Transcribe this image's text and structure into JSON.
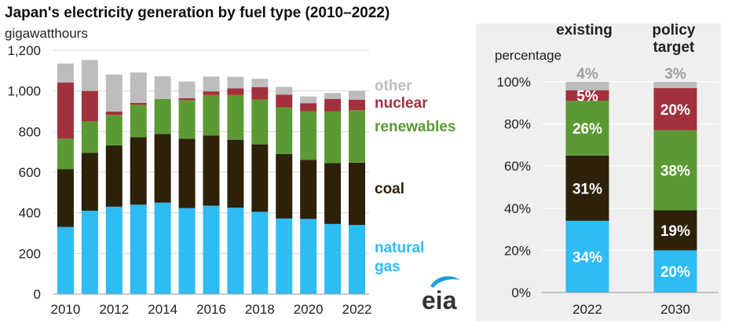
{
  "colors": {
    "natural_gas": "#2ebcf5",
    "coal": "#2e210a",
    "renewables": "#5b9a32",
    "nuclear": "#a3303d",
    "other": "#bdbdbd",
    "panel_bg": "#efefef",
    "eia_blue": "#1aa0dc"
  },
  "eia_logo": {
    "text": "eia"
  },
  "chart_data": [
    {
      "type": "bar",
      "stacked": true,
      "title": "Japan's electricity generation by fuel type (2010–2022)",
      "ylabel": "gigawatthours",
      "xlabel": "",
      "ylim": [
        0,
        1200
      ],
      "yticks": [
        0,
        200,
        400,
        600,
        800,
        1000,
        1200
      ],
      "ytick_labels": [
        "0",
        "200",
        "400",
        "600",
        "800",
        "1,000",
        "1,200"
      ],
      "categories": [
        "2010",
        "2011",
        "2012",
        "2013",
        "2014",
        "2015",
        "2016",
        "2017",
        "2018",
        "2019",
        "2020",
        "2021",
        "2022"
      ],
      "xtick_labels": [
        "2010",
        "",
        "2012",
        "",
        "2014",
        "",
        "2016",
        "",
        "2018",
        "",
        "2020",
        "",
        "2022"
      ],
      "series": [
        {
          "name": "natural gas",
          "key": "natural_gas",
          "legend_lines": [
            "natural",
            "gas"
          ],
          "values": [
            330,
            410,
            430,
            440,
            450,
            423,
            435,
            425,
            405,
            372,
            370,
            345,
            340
          ]
        },
        {
          "name": "coal",
          "key": "coal",
          "legend_lines": [
            "coal"
          ],
          "values": [
            285,
            285,
            302,
            332,
            338,
            342,
            345,
            335,
            332,
            317,
            290,
            300,
            307
          ]
        },
        {
          "name": "renewables",
          "key": "renewables",
          "legend_lines": [
            "renewables"
          ],
          "values": [
            150,
            155,
            150,
            160,
            172,
            190,
            200,
            220,
            220,
            230,
            240,
            255,
            258
          ]
        },
        {
          "name": "nuclear",
          "key": "nuclear",
          "legend_lines": [
            "nuclear"
          ],
          "values": [
            277,
            150,
            17,
            9,
            0,
            9,
            18,
            33,
            62,
            63,
            40,
            60,
            52
          ]
        },
        {
          "name": "other",
          "key": "other",
          "legend_lines": [
            "other"
          ],
          "values": [
            93,
            152,
            182,
            150,
            112,
            82,
            73,
            57,
            41,
            38,
            33,
            30,
            43
          ]
        }
      ]
    },
    {
      "type": "bar",
      "stacked": true,
      "percent": true,
      "ylabel": "percentage",
      "ylim": [
        0,
        100
      ],
      "yticks": [
        0,
        20,
        40,
        60,
        80,
        100
      ],
      "ytick_labels": [
        "0%",
        "20%",
        "40%",
        "60%",
        "80%",
        "100%"
      ],
      "categories": [
        "2022",
        "2030"
      ],
      "column_headers": [
        [
          "existing"
        ],
        [
          "policy",
          "target"
        ]
      ],
      "series": [
        {
          "name": "natural gas",
          "key": "natural_gas",
          "values": [
            34,
            20
          ],
          "labels": [
            "34%",
            "20%"
          ]
        },
        {
          "name": "coal",
          "key": "coal",
          "values": [
            31,
            19
          ],
          "labels": [
            "31%",
            "19%"
          ]
        },
        {
          "name": "renewables",
          "key": "renewables",
          "values": [
            26,
            38
          ],
          "labels": [
            "26%",
            "38%"
          ]
        },
        {
          "name": "nuclear",
          "key": "nuclear",
          "values": [
            5,
            20
          ],
          "labels": [
            "5%",
            "20%"
          ]
        },
        {
          "name": "other",
          "key": "other",
          "values": [
            4,
            3
          ],
          "labels": [
            "4%",
            "3%"
          ]
        }
      ]
    }
  ]
}
